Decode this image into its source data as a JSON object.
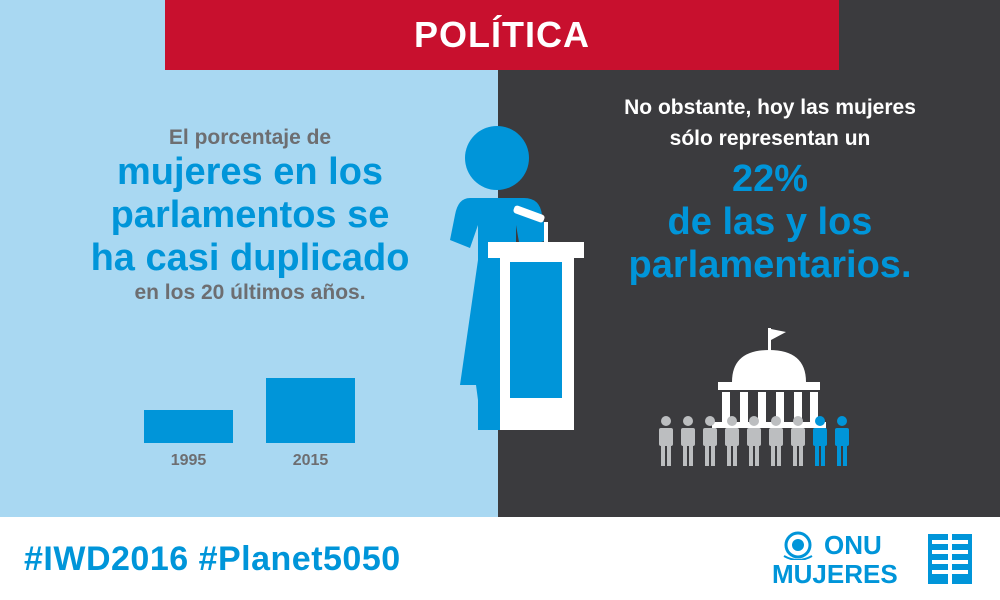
{
  "title": "POLÍTICA",
  "left": {
    "intro": "El porcentaje de",
    "headline_lines": [
      "mujeres en los",
      "parlamentos se",
      "ha casi duplicado"
    ],
    "outro": "en los 20 últimos años."
  },
  "right": {
    "intro_lines": [
      "No obstante, hoy las mujeres",
      "sólo representan un"
    ],
    "percent": "22%",
    "headline_lines": [
      "de las y los",
      "parlamentarios."
    ]
  },
  "chart_data": {
    "type": "bar",
    "categories": [
      "1995",
      "2015"
    ],
    "values": [
      11.3,
      22
    ]
  },
  "people_icons": {
    "total": 9,
    "highlighted": 2
  },
  "footer": {
    "hashtags": "#IWD2016 #Planet5050",
    "logo_line1": "ONU",
    "logo_line2": "MUJERES"
  },
  "colors": {
    "red_banner": "#c8102e",
    "blue": "#0095d9",
    "light_blue": "#a9d8f2",
    "dark": "#3b3b3e",
    "gray": "#6d6e71"
  },
  "icons": [
    "woman-at-podium-icon",
    "parliament-building-icon",
    "people-row-icon",
    "un-emblem-icon",
    "un-women-mark-icon"
  ]
}
